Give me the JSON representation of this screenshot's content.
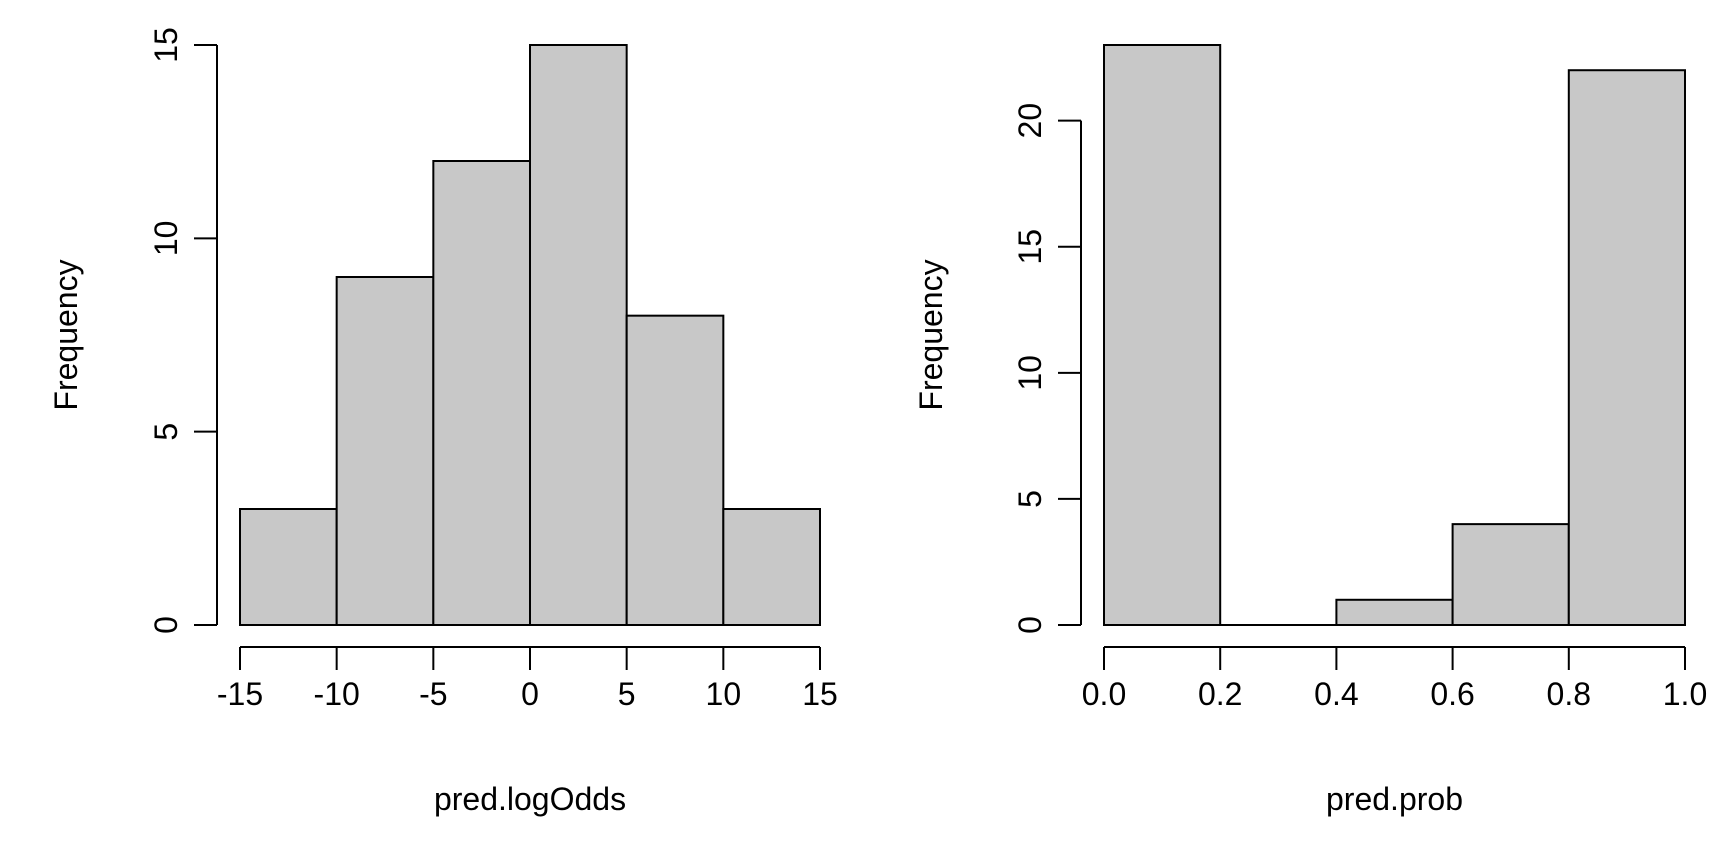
{
  "chart_data": [
    {
      "type": "bar",
      "histogram": true,
      "title": "",
      "xlabel": "pred.logOdds",
      "ylabel": "Frequency",
      "bins": [
        [
          -15,
          -10
        ],
        [
          -10,
          -5
        ],
        [
          -5,
          0
        ],
        [
          0,
          5
        ],
        [
          5,
          10
        ],
        [
          10,
          15
        ]
      ],
      "values": [
        3,
        9,
        12,
        15,
        8,
        3
      ],
      "xlim": [
        -15,
        15
      ],
      "ylim": [
        0,
        15
      ],
      "xticks": [
        -15,
        -10,
        -5,
        0,
        5,
        10,
        15
      ],
      "xtick_labels": [
        "-15",
        "-10",
        "-5",
        "0",
        "5",
        "10",
        "15"
      ],
      "yticks": [
        0,
        5,
        10,
        15
      ],
      "ytick_labels": [
        "0",
        "5",
        "10",
        "15"
      ],
      "grid": false,
      "bar_color": "#c8c8c8"
    },
    {
      "type": "bar",
      "histogram": true,
      "title": "",
      "xlabel": "pred.prob",
      "ylabel": "Frequency",
      "bins": [
        [
          0.0,
          0.2
        ],
        [
          0.2,
          0.4
        ],
        [
          0.4,
          0.6
        ],
        [
          0.6,
          0.8
        ],
        [
          0.8,
          1.0
        ]
      ],
      "values": [
        23,
        0,
        1,
        4,
        22
      ],
      "xlim": [
        0,
        1
      ],
      "ylim": [
        0,
        23
      ],
      "xticks": [
        0.0,
        0.2,
        0.4,
        0.6,
        0.8,
        1.0
      ],
      "xtick_labels": [
        "0.0",
        "0.2",
        "0.4",
        "0.6",
        "0.8",
        "1.0"
      ],
      "yticks": [
        0,
        5,
        10,
        15,
        20
      ],
      "ytick_labels": [
        "0",
        "5",
        "10",
        "15",
        "20"
      ],
      "grid": false,
      "bar_color": "#c8c8c8"
    }
  ]
}
